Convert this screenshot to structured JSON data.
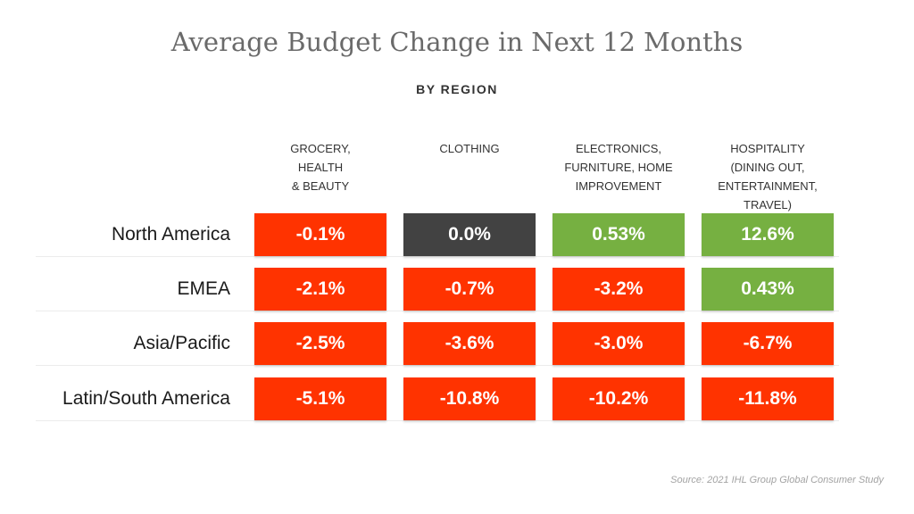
{
  "chart_data": {
    "type": "table",
    "title": "Average Budget Change in Next 12 Months",
    "subtitle": "BY REGION",
    "columns": [
      [
        "GROCERY,",
        "HEALTH",
        "& BEAUTY"
      ],
      [
        "CLOTHING"
      ],
      [
        "ELECTRONICS,",
        "FURNITURE, HOME",
        "IMPROVEMENT"
      ],
      [
        "HOSPITALITY",
        "(DINING OUT,",
        "ENTERTAINMENT,",
        "TRAVEL)"
      ]
    ],
    "rows": [
      {
        "label": "North America",
        "values": [
          "-0.1%",
          "0.0%",
          "0.53%",
          "12.6%"
        ]
      },
      {
        "label": "EMEA",
        "values": [
          "-2.1%",
          "-0.7%",
          "-3.2%",
          "0.43%"
        ]
      },
      {
        "label": "Asia/Pacific",
        "values": [
          "-2.5%",
          "-3.6%",
          "-3.0%",
          "-6.7%"
        ]
      },
      {
        "label": "Latin/South America",
        "values": [
          "-5.1%",
          "-10.8%",
          "-10.2%",
          "-11.8%"
        ]
      }
    ],
    "colors": {
      "negative": "#ff3300",
      "neutral": "#424242",
      "positive": "#76b041"
    },
    "source": "Source: 2021 IHL Group Global Consumer Study"
  }
}
